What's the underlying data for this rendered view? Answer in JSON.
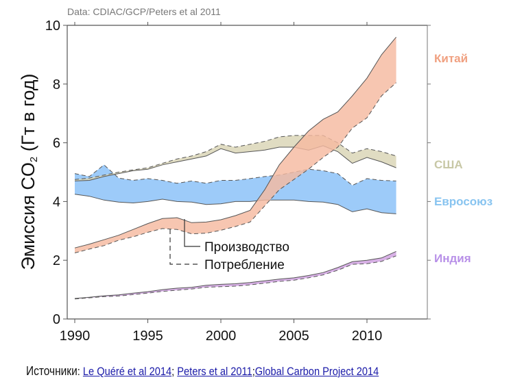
{
  "chart_data": {
    "type": "area",
    "title": "Data: CDIAC/GCP/Peters et al 2011",
    "xlabel": "",
    "ylabel": "Эмиссия CO₂ (Гт в год)",
    "ylabel_parts": {
      "before": "Эмиссия CO",
      "sub": "2",
      "after": " (Гт в год)"
    },
    "xlim": [
      1989.5,
      2014
    ],
    "ylim": [
      0,
      10
    ],
    "x_ticks": [
      1990,
      1995,
      2000,
      2005,
      2010
    ],
    "x_tick_labels": [
      "1990",
      "1995",
      "2000",
      "2005",
      "2010"
    ],
    "y_ticks": [
      0,
      2,
      4,
      6,
      8,
      10
    ],
    "y_tick_labels": [
      "0",
      "2",
      "4",
      "6",
      "8",
      "10"
    ],
    "grid": false,
    "x": [
      1990,
      1991,
      1992,
      1993,
      1994,
      1995,
      1996,
      1997,
      1998,
      1999,
      2000,
      2001,
      2002,
      2003,
      2004,
      2005,
      2006,
      2007,
      2008,
      2009,
      2010,
      2011,
      2012
    ],
    "series": [
      {
        "name": "Китай",
        "color": "#f5b9a0",
        "label_color": "#f0a080",
        "production": [
          2.42,
          2.55,
          2.7,
          2.85,
          3.05,
          3.25,
          3.42,
          3.45,
          3.28,
          3.3,
          3.38,
          3.52,
          3.7,
          4.4,
          5.25,
          5.85,
          6.4,
          6.8,
          7.05,
          7.6,
          8.2,
          9.0,
          9.6
        ],
        "consumption": [
          2.25,
          2.38,
          2.5,
          2.68,
          2.8,
          2.95,
          3.08,
          3.05,
          2.9,
          2.92,
          3.02,
          3.15,
          3.3,
          3.85,
          4.4,
          4.75,
          5.1,
          5.5,
          5.85,
          6.5,
          6.85,
          7.6,
          8.05
        ]
      },
      {
        "name": "США",
        "color": "#d9d4b4",
        "label_color": "#c8c8a6",
        "production": [
          4.7,
          4.72,
          4.85,
          4.95,
          5.05,
          5.1,
          5.25,
          5.35,
          5.45,
          5.55,
          5.8,
          5.65,
          5.7,
          5.75,
          5.85,
          5.85,
          5.75,
          5.9,
          5.7,
          5.3,
          5.5,
          5.35,
          5.15
        ],
        "consumption": [
          4.75,
          4.8,
          4.9,
          5.0,
          5.08,
          5.15,
          5.3,
          5.45,
          5.55,
          5.7,
          5.95,
          5.85,
          5.95,
          6.05,
          6.2,
          6.25,
          6.25,
          6.25,
          6.0,
          5.65,
          5.8,
          5.7,
          5.55
        ]
      },
      {
        "name": "Евросоюз",
        "color": "#88c0f8",
        "label_color": "#88c4f0",
        "production": [
          4.25,
          4.18,
          4.05,
          3.98,
          3.95,
          4.0,
          4.08,
          4.0,
          3.98,
          3.9,
          3.92,
          4.0,
          4.0,
          4.05,
          4.05,
          4.05,
          4.0,
          3.98,
          3.9,
          3.65,
          3.75,
          3.62,
          3.58
        ],
        "consumption": [
          4.95,
          4.85,
          5.25,
          4.8,
          4.72,
          4.78,
          4.72,
          4.62,
          4.7,
          4.62,
          4.72,
          4.72,
          4.78,
          4.85,
          4.9,
          5.0,
          5.1,
          5.05,
          4.95,
          4.55,
          4.78,
          4.72,
          4.7
        ]
      },
      {
        "name": "Индия",
        "color": "#d0a0e0",
        "label_color": "#b890e8",
        "production": [
          0.7,
          0.74,
          0.79,
          0.82,
          0.88,
          0.93,
          1.0,
          1.05,
          1.08,
          1.15,
          1.18,
          1.2,
          1.24,
          1.3,
          1.36,
          1.4,
          1.48,
          1.58,
          1.75,
          1.95,
          2.0,
          2.08,
          2.3
        ],
        "consumption": [
          0.68,
          0.72,
          0.76,
          0.78,
          0.83,
          0.88,
          0.94,
          0.98,
          1.02,
          1.08,
          1.1,
          1.12,
          1.16,
          1.22,
          1.28,
          1.32,
          1.4,
          1.5,
          1.66,
          1.86,
          1.88,
          1.96,
          2.15
        ]
      }
    ],
    "legend": {
      "production_label": "Производство",
      "consumption_label": "Потребление",
      "placement": "center-left, below curves"
    }
  },
  "footer": {
    "label": "Источники",
    "colon": ":",
    "links": [
      {
        "text": "Le Quéré et al 2014"
      },
      {
        "text": "Peters et al 2011"
      },
      {
        "text": "Global Carbon Project 2014"
      }
    ],
    "separators": [
      ";",
      ";"
    ]
  }
}
